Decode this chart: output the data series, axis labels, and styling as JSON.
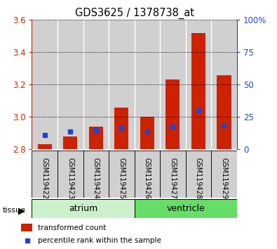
{
  "title": "GDS3625 / 1378738_at",
  "samples": [
    "GSM119422",
    "GSM119423",
    "GSM119424",
    "GSM119425",
    "GSM119426",
    "GSM119427",
    "GSM119428",
    "GSM119429"
  ],
  "red_values": [
    2.83,
    2.88,
    2.94,
    3.06,
    3.0,
    3.23,
    3.52,
    3.26
  ],
  "blue_values": [
    2.89,
    2.91,
    2.92,
    2.93,
    2.91,
    2.94,
    3.04,
    2.95
  ],
  "y_min": 2.8,
  "y_max": 3.6,
  "y_ticks": [
    2.8,
    3.0,
    3.2,
    3.4,
    3.6
  ],
  "right_y_ticks": [
    0,
    25,
    50,
    75,
    100
  ],
  "atrium_color": "#ccf0cc",
  "ventricle_color": "#66dd66",
  "bar_bg_color": "#d0d0d0",
  "red_color": "#cc2200",
  "blue_color": "#2244cc",
  "left_tick_color": "#cc2200",
  "right_tick_color": "#2244cc",
  "n_atrium": 4,
  "n_ventricle": 4
}
